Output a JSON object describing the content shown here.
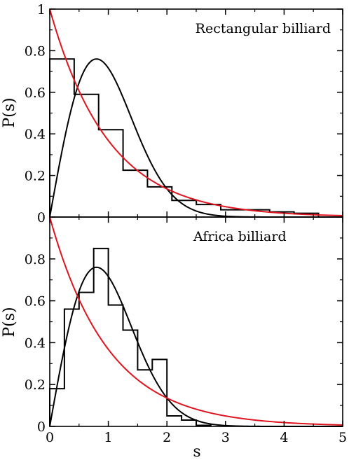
{
  "chart_data": [
    {
      "type": "line",
      "title": "Rectangular billiard",
      "xlabel": "",
      "ylabel": "P(s)",
      "xlim": [
        0,
        5
      ],
      "ylim": [
        0,
        1
      ],
      "xticks": [
        "0",
        "1",
        "2",
        "3",
        "4",
        "5"
      ],
      "yticks": [
        "0",
        "0.2",
        "0.4",
        "0.6",
        "0.8",
        "1"
      ],
      "histogram": {
        "bin_width": 0.417,
        "values": [
          0.76,
          0.59,
          0.42,
          0.225,
          0.145,
          0.08,
          0.06,
          0.035,
          0.035,
          0.025,
          0.018
        ],
        "color": "#000000"
      },
      "curves": [
        {
          "formula": "wigner",
          "color": "#000000"
        },
        {
          "formula": "poisson",
          "color": "#e0141e"
        }
      ],
      "grid": false
    },
    {
      "type": "line",
      "title": "Africa billiard",
      "xlabel": "s",
      "ylabel": "P(s)",
      "xlim": [
        0,
        5
      ],
      "ylim": [
        0,
        1
      ],
      "xticks": [
        "0",
        "1",
        "2",
        "3",
        "4",
        "5"
      ],
      "yticks": [
        "0",
        "0.2",
        "0.4",
        "0.6",
        "0.8"
      ],
      "histogram": {
        "bin_width": 0.25,
        "values": [
          0.18,
          0.56,
          0.64,
          0.85,
          0.58,
          0.46,
          0.27,
          0.32,
          0.05,
          0.03,
          0.005
        ],
        "color": "#000000"
      },
      "curves": [
        {
          "formula": "wigner",
          "color": "#000000"
        },
        {
          "formula": "poisson",
          "color": "#e0141e"
        }
      ],
      "grid": false
    }
  ]
}
